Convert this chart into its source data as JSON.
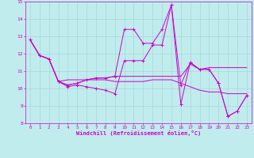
{
  "xlabel": "Windchill (Refroidissement éolien,°C)",
  "background_color": "#c0eced",
  "grid_color": "#a8d8d8",
  "line_color": "#cc00cc",
  "x_ticks": [
    0,
    1,
    2,
    3,
    4,
    5,
    6,
    7,
    8,
    9,
    10,
    11,
    12,
    13,
    14,
    15,
    16,
    17,
    18,
    19,
    20,
    21,
    22,
    23
  ],
  "ylim": [
    8,
    15
  ],
  "yticks": [
    8,
    9,
    10,
    11,
    12,
    13,
    14,
    15
  ],
  "series": [
    {
      "data": [
        12.8,
        11.9,
        11.7,
        10.4,
        10.5,
        10.5,
        10.5,
        10.5,
        10.5,
        10.4,
        10.4,
        10.4,
        10.4,
        10.5,
        10.5,
        10.5,
        10.3,
        10.1,
        9.9,
        9.8,
        9.8,
        9.7,
        9.7,
        9.7
      ],
      "marker": false
    },
    {
      "data": [
        12.8,
        11.9,
        11.7,
        10.4,
        10.2,
        10.3,
        10.5,
        10.6,
        10.6,
        10.7,
        10.7,
        10.7,
        10.7,
        10.7,
        10.7,
        10.7,
        10.7,
        11.4,
        11.1,
        11.2,
        11.2,
        11.2,
        11.2,
        11.2
      ],
      "marker": false
    },
    {
      "data": [
        12.8,
        11.9,
        11.7,
        10.4,
        10.1,
        10.2,
        10.1,
        10.0,
        9.9,
        9.7,
        11.6,
        11.6,
        11.6,
        12.5,
        12.5,
        14.8,
        10.2,
        11.5,
        11.1,
        11.1,
        10.3,
        8.4,
        8.7,
        9.6
      ],
      "marker": true
    },
    {
      "data": [
        12.8,
        11.9,
        11.7,
        10.4,
        10.2,
        10.3,
        10.5,
        10.6,
        10.6,
        10.7,
        13.4,
        13.4,
        12.6,
        12.6,
        13.4,
        14.8,
        9.1,
        11.5,
        11.1,
        11.1,
        10.3,
        8.4,
        8.7,
        9.6
      ],
      "marker": true
    }
  ]
}
